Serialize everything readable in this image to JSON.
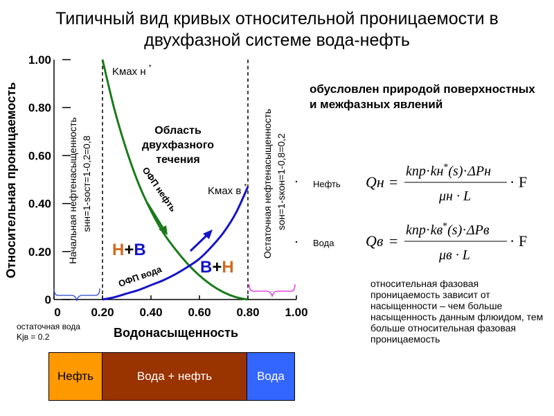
{
  "title": {
    "line1": "Типичный вид кривых относительной проницаемости в",
    "line2": "двухфазной системе вода-нефть"
  },
  "chart_data": {
    "type": "line",
    "xlabel": "Водонасыщенность",
    "ylabel": "Относительная проницаемость",
    "xlim": [
      0,
      1
    ],
    "ylim": [
      0,
      1
    ],
    "x_ticks": [
      "0",
      "0.20",
      "0.40",
      "0.60",
      "0.80",
      "1.00"
    ],
    "y_ticks": [
      "0",
      "0.20",
      "0.40",
      "0.60",
      "0.80",
      "1.00"
    ],
    "grid": false,
    "series": [
      {
        "name": "ОФП нефть",
        "color": "#1a7a1a",
        "x": [
          0.2,
          0.25,
          0.3,
          0.35,
          0.4,
          0.45,
          0.5,
          0.55,
          0.6,
          0.65,
          0.7,
          0.75,
          0.8
        ],
        "y": [
          1.0,
          0.79,
          0.62,
          0.48,
          0.37,
          0.28,
          0.21,
          0.15,
          0.1,
          0.06,
          0.03,
          0.01,
          0.0
        ]
      },
      {
        "name": "ОФП вода",
        "color": "#1414c8",
        "x": [
          0.2,
          0.25,
          0.3,
          0.35,
          0.4,
          0.45,
          0.5,
          0.55,
          0.6,
          0.65,
          0.7,
          0.75,
          0.8
        ],
        "y": [
          0.0,
          0.01,
          0.025,
          0.04,
          0.06,
          0.08,
          0.105,
          0.135,
          0.17,
          0.22,
          0.28,
          0.36,
          0.47
        ]
      }
    ],
    "vlines": [
      0.2,
      0.8
    ],
    "annotations": {
      "kmax_oil": "Kмах н",
      "kmax_water": "Kмах в",
      "region_line1": "Область",
      "region_line2": "двухфазного",
      "region_line3": "течения",
      "oil_curve_label": "ОФП нефть",
      "water_curve_label": "ОФП вода",
      "left_region_h": "Н",
      "left_region_plus": "+",
      "left_region_v": "В",
      "right_region_v": "В",
      "right_region_plus": "+",
      "right_region_h": "Н",
      "star": "*",
      "left_vertical_1": "Начальная нефтенасыщенность",
      "left_vertical_2": "sнн=1-sост=1-0,2=0,8",
      "right_vertical_1": "Остаточная нефтенасыщенность",
      "right_vertical_2": "sон=1-sкон=1-0,8=0,2"
    }
  },
  "residual_note": {
    "line1": "остаточная  вода",
    "line2": "Kjв = 0.2"
  },
  "saturation_bar": {
    "oil": "Нефть",
    "mix": "Вода + нефть",
    "water": "Вода",
    "colors": {
      "oil": "#ff9900",
      "mix": "#993300",
      "water": "#3366ff"
    }
  },
  "right_panel": {
    "heading": "обусловлен природой поверхностных и межфазных явлений",
    "oil_label": "Нефть",
    "water_label": "Вода",
    "description": "относительная фазовая проницаемость зависит от насыщенности – чем больше насыщенность данным флюидом, тем больше относительная фазовая проницаемость"
  },
  "formulas": {
    "oil": {
      "lhs": "Qн",
      "eq": "=",
      "num_k": "kпр",
      "num_dot1": "·",
      "num_k2": "kн",
      "num_star": "*",
      "num_s": "(s)",
      "num_dot2": "·",
      "num_dp": "ΔPн",
      "den": "μн · L",
      "tail": "· F"
    },
    "water": {
      "lhs": "Qв",
      "eq": "=",
      "num_k": "kпр",
      "num_dot1": "·",
      "num_k2": "kв",
      "num_star": "*",
      "num_s": "(s)",
      "num_dot2": "·",
      "num_dp": "ΔPв",
      "den": "μв · L",
      "tail": "· F"
    }
  }
}
